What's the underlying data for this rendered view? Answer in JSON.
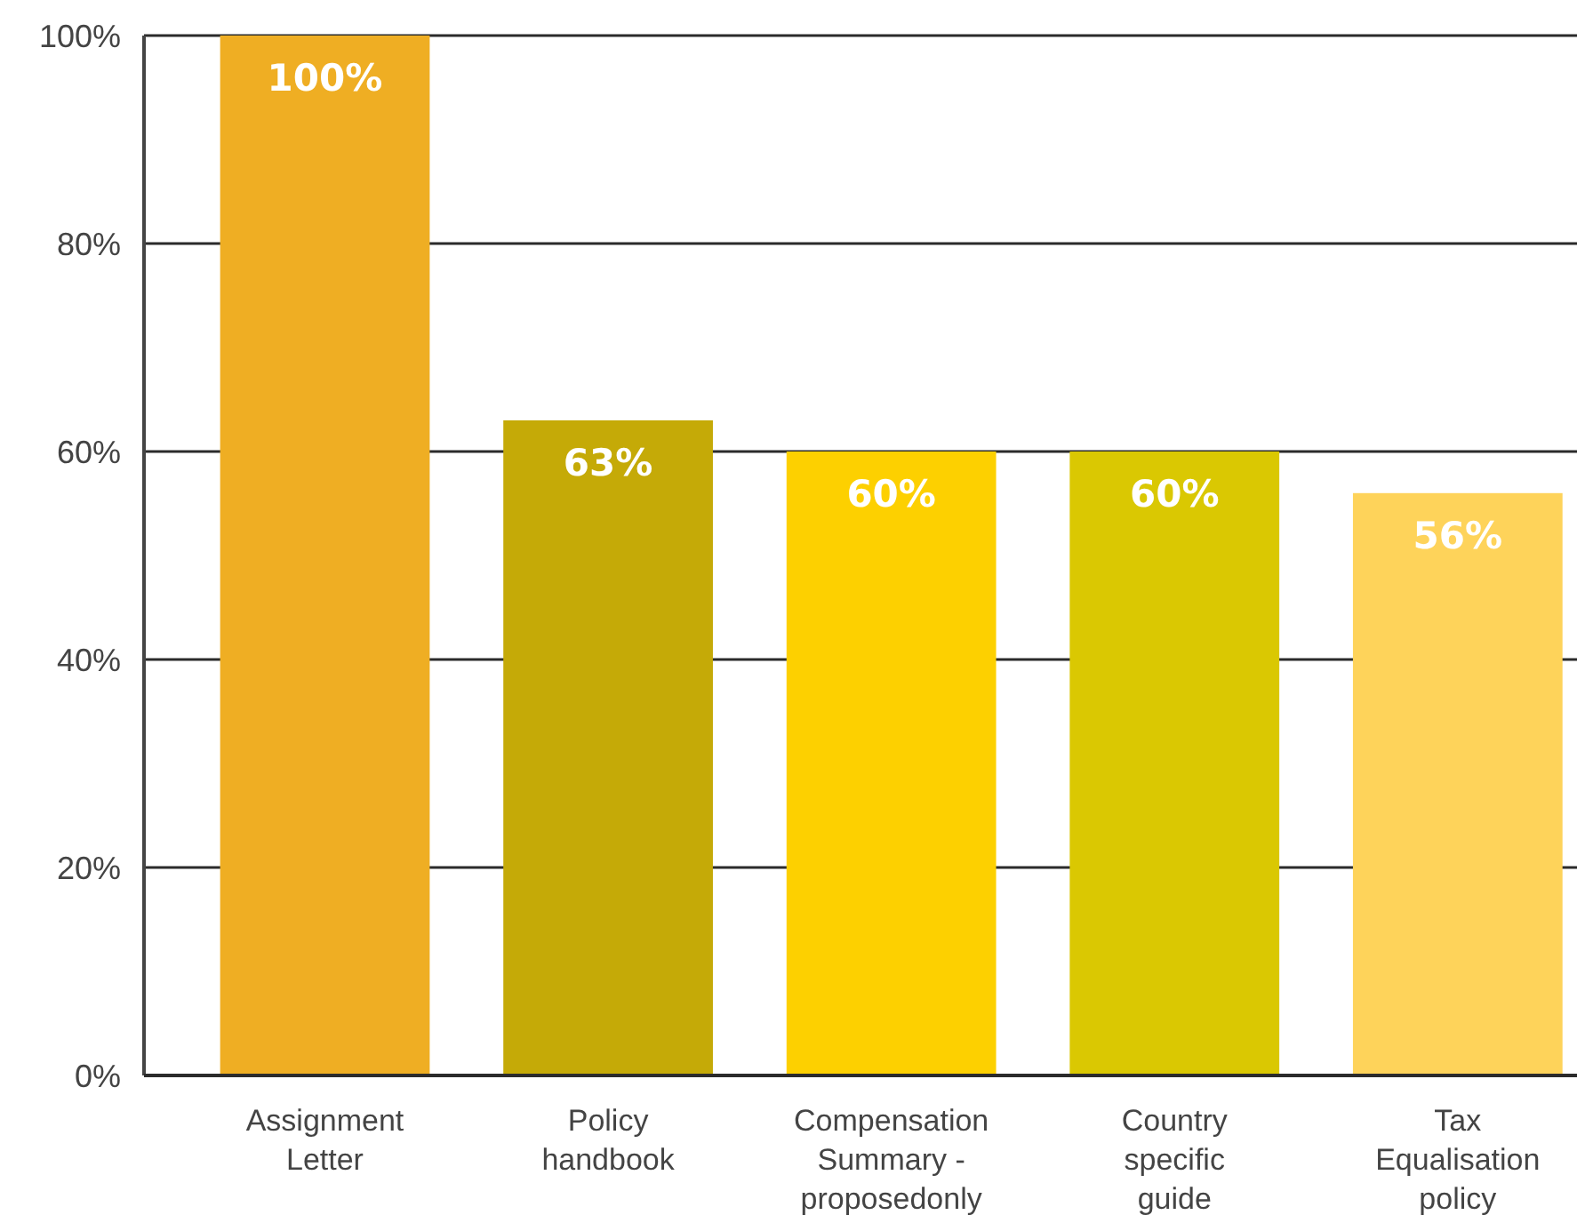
{
  "chart_data": {
    "type": "bar",
    "categories": [
      "Assignment Letter",
      "Policy handbook",
      "Compensation Summary - proposedonly",
      "Country specific guide",
      "Tax Equalisation policy"
    ],
    "values": [
      100,
      63,
      60,
      60,
      56
    ],
    "colors": [
      "#efae23",
      "#c5aa07",
      "#fdd000",
      "#dac802",
      "#fed35a"
    ],
    "value_labels": [
      "100%",
      "63%",
      "60%",
      "60%",
      "56%"
    ],
    "ylim": [
      0,
      100
    ],
    "yticks": [
      {
        "value": 0,
        "label": "0%"
      },
      {
        "value": 20,
        "label": "20%"
      },
      {
        "value": 40,
        "label": "40%"
      },
      {
        "value": 60,
        "label": "60%"
      },
      {
        "value": 80,
        "label": "80%"
      },
      {
        "value": 100,
        "label": "100%"
      }
    ],
    "grid": "y"
  }
}
